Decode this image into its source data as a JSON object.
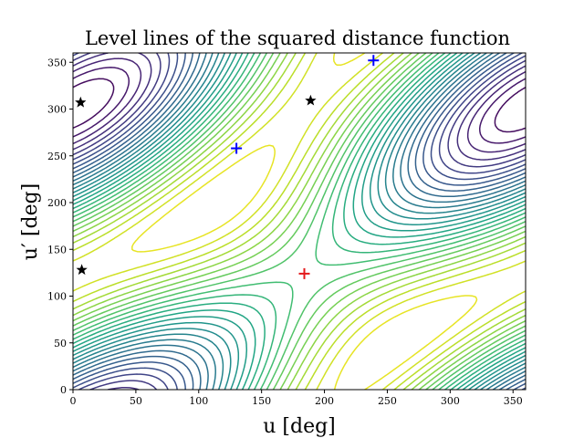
{
  "chart_data": {
    "type": "contour",
    "title": "Level lines of the squared distance function",
    "xlabel": "u [deg]",
    "ylabel": "u′ [deg]",
    "xlim": [
      0,
      360
    ],
    "ylim": [
      0,
      360
    ],
    "xticks": [
      0,
      50,
      100,
      150,
      200,
      250,
      300,
      350
    ],
    "yticks": [
      0,
      50,
      100,
      150,
      200,
      250,
      300,
      350
    ],
    "colormap": "viridis",
    "grid": false,
    "contour_field": {
      "description": "squared distance, minimum near (184, 124)",
      "center": [
        184,
        124
      ],
      "levels": 28
    },
    "markers": [
      {
        "name": "minimum",
        "symbol": "plus",
        "color": "#e41a1c",
        "x": 184,
        "y": 124
      },
      {
        "name": "point-a",
        "symbol": "plus",
        "color": "#0000ff",
        "x": 130,
        "y": 258
      },
      {
        "name": "point-b",
        "symbol": "plus",
        "color": "#0000ff",
        "x": 239,
        "y": 352
      },
      {
        "name": "star-1",
        "symbol": "star",
        "color": "#000000",
        "x": 6,
        "y": 307
      },
      {
        "name": "star-2",
        "symbol": "star",
        "color": "#000000",
        "x": 189,
        "y": 309
      },
      {
        "name": "star-3",
        "symbol": "star",
        "color": "#000000",
        "x": 7,
        "y": 128
      }
    ]
  }
}
